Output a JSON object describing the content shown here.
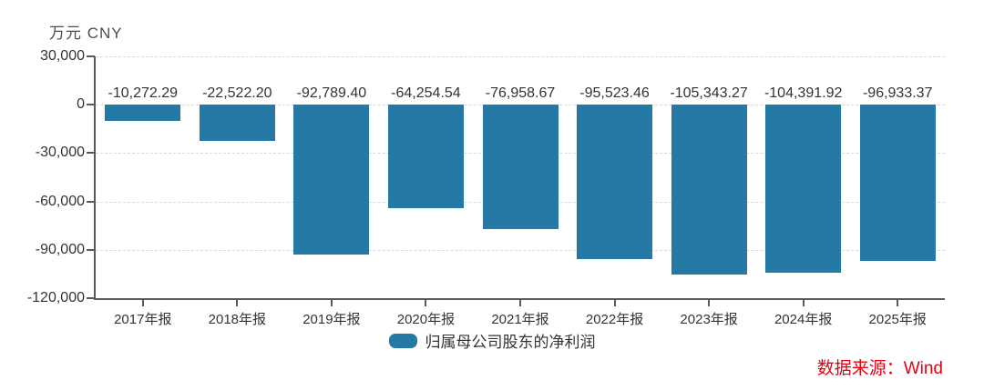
{
  "chart_data": {
    "type": "bar",
    "title": "",
    "unit_label": "万元 CNY",
    "ylabel": "万元 CNY",
    "xlabel": "",
    "categories": [
      "2017年报",
      "2018年报",
      "2019年报",
      "2020年报",
      "2021年报",
      "2022年报",
      "2023年报",
      "2024年报",
      "2025年报"
    ],
    "series": [
      {
        "name": "归属母公司股东的净利润",
        "values": [
          -10272.29,
          -22522.2,
          -92789.4,
          -64254.54,
          -76958.67,
          -95523.46,
          -105343.27,
          -104391.92,
          -96933.37
        ],
        "value_labels": [
          "-10,272.29",
          "-22,522.20",
          "-92,789.40",
          "-64,254.54",
          "-76,958.67",
          "-95,523.46",
          "-105,343.27",
          "-104,391.92",
          "-96,933.37"
        ]
      }
    ],
    "y_ticks": [
      30000,
      0,
      -30000,
      -60000,
      -90000,
      -120000
    ],
    "y_tick_labels": [
      "30,000",
      "0",
      "-30,000",
      "-60,000",
      "-90,000",
      "-120,000"
    ],
    "ylim": [
      -120000,
      30000
    ],
    "grid": true,
    "gridline_style": "dashed",
    "legend_position": "bottom",
    "bar_color": "#2579A5",
    "axis_color": "#595959",
    "label_color": "#333333"
  },
  "legend": {
    "label": "归属母公司股东的净利润",
    "swatch_color": "#2579A5"
  },
  "source": {
    "text": "数据来源：Wind",
    "color": "#E60012"
  }
}
